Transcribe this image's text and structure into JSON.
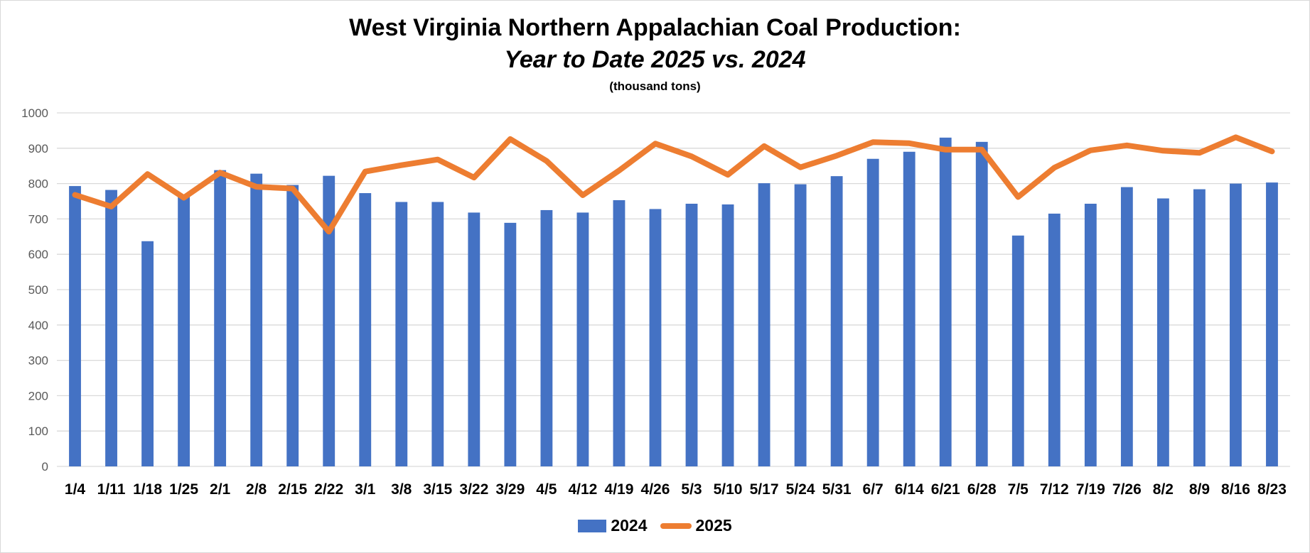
{
  "title": "West Virginia Northern Appalachian Coal Production:",
  "subtitle": "Year to Date 2025 vs. 2024",
  "unit_note": "(thousand tons)",
  "colors": {
    "series_2024": "#4472c4",
    "series_2025": "#ed7d31",
    "grid": "#d9d9d9",
    "axis_text": "#595959"
  },
  "chart_data": {
    "type": "bar",
    "title": "West Virginia Northern Appalachian Coal Production: Year to Date 2025 vs. 2024",
    "ylabel": "(thousand tons)",
    "xlabel": "",
    "ylim": [
      0,
      1000
    ],
    "yticks": [
      "0",
      "100",
      "200",
      "300",
      "400",
      "500",
      "600",
      "700",
      "800",
      "900",
      "1000"
    ],
    "grid": true,
    "legend_position": "bottom",
    "categories": [
      "1/4",
      "1/11",
      "1/18",
      "1/25",
      "2/1",
      "2/8",
      "2/15",
      "2/22",
      "3/1",
      "3/8",
      "3/15",
      "3/22",
      "3/29",
      "4/5",
      "4/12",
      "4/19",
      "4/26",
      "5/3",
      "5/10",
      "5/17",
      "5/24",
      "5/31",
      "6/7",
      "6/14",
      "6/21",
      "6/28",
      "7/5",
      "7/12",
      "7/19",
      "7/26",
      "8/2",
      "8/9",
      "8/16",
      "8/23"
    ],
    "series": [
      {
        "name": "2024",
        "type": "bar",
        "values": [
          793,
          782,
          637,
          762,
          838,
          828,
          796,
          822,
          773,
          748,
          748,
          718,
          689,
          725,
          718,
          753,
          728,
          743,
          741,
          801,
          798,
          821,
          870,
          890,
          930,
          918,
          653,
          715,
          743,
          790,
          758,
          784,
          800,
          803
        ]
      },
      {
        "name": "2025",
        "type": "line",
        "values": [
          768,
          735,
          827,
          760,
          831,
          791,
          786,
          664,
          834,
          852,
          868,
          817,
          926,
          864,
          767,
          837,
          913,
          877,
          825,
          906,
          846,
          879,
          917,
          914,
          896,
          896,
          762,
          845,
          894,
          908,
          893,
          887,
          931,
          891
        ]
      }
    ]
  }
}
